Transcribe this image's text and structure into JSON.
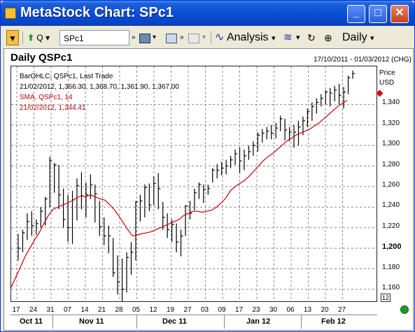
{
  "window": {
    "title": "MetaStock Chart: SPc1",
    "min_label": "_",
    "max_label": "□",
    "close_label": "✕"
  },
  "toolbar": {
    "quote_label": "Q",
    "symbol_value": "SPc1",
    "analysis_label": "Analysis",
    "period_label": "Daily",
    "chevron": "»",
    "dropdown": "▾"
  },
  "chart": {
    "title": "Daily QSPc1",
    "date_range": "17/10/2011 - 01/03/2012 (CHG)",
    "axis_head_1": "Price",
    "axis_head_2": "USD",
    "zoom_value": "12",
    "legend": {
      "line1": "BarOHLC, QSPc1, Last Trade",
      "line2": "21/02/2012, 1,366.30, 1,368.70, 1,361.90, 1,367.00",
      "line3": "SMA, QSPc1, 14",
      "line4": "21/02/2012, 1,344.41"
    },
    "colors": {
      "bars": "#000000",
      "sma": "#cc0000",
      "grid": "#888888"
    }
  },
  "chart_data": {
    "type": "line",
    "title": "Daily QSPc1",
    "ylabel": "Price USD",
    "ylim": [
      1147,
      1377
    ],
    "y_ticks": [
      "1,340",
      "1,320",
      "1,300",
      "1,280",
      "1,260",
      "1,240",
      "1,220",
      "1,200",
      "1,180",
      "1,160"
    ],
    "x_ticks": [
      "17",
      "24",
      "31",
      "07",
      "14",
      "21",
      "28",
      "05",
      "12",
      "19",
      "27",
      "03",
      "09",
      "17",
      "23",
      "30",
      "06",
      "13",
      "20",
      "27"
    ],
    "months": [
      "Oct 11",
      "Nov 11",
      "Dec 11",
      "Jan 12",
      "Feb 12"
    ],
    "grid": true,
    "series": [
      {
        "name": "BarOHLC, QSPc1, Last Trade",
        "bars": [
          {
            "h": 1214,
            "l": 1188,
            "c": 1200
          },
          {
            "h": 1218,
            "l": 1196,
            "c": 1215
          },
          {
            "h": 1234,
            "l": 1208,
            "c": 1226
          },
          {
            "h": 1236,
            "l": 1212,
            "c": 1222
          },
          {
            "h": 1228,
            "l": 1213,
            "c": 1224
          },
          {
            "h": 1240,
            "l": 1220,
            "c": 1236
          },
          {
            "h": 1250,
            "l": 1222,
            "c": 1248
          },
          {
            "h": 1289,
            "l": 1240,
            "c": 1285
          },
          {
            "h": 1283,
            "l": 1254,
            "c": 1281
          },
          {
            "h": 1281,
            "l": 1238,
            "c": 1252
          },
          {
            "h": 1258,
            "l": 1220,
            "c": 1228
          },
          {
            "h": 1252,
            "l": 1206,
            "c": 1220
          },
          {
            "h": 1256,
            "l": 1204,
            "c": 1247
          },
          {
            "h": 1268,
            "l": 1227,
            "c": 1261
          },
          {
            "h": 1274,
            "l": 1238,
            "c": 1251
          },
          {
            "h": 1264,
            "l": 1230,
            "c": 1252
          },
          {
            "h": 1272,
            "l": 1248,
            "c": 1262
          },
          {
            "h": 1262,
            "l": 1225,
            "c": 1253
          },
          {
            "h": 1246,
            "l": 1212,
            "c": 1221
          },
          {
            "h": 1230,
            "l": 1203,
            "c": 1212
          },
          {
            "h": 1222,
            "l": 1195,
            "c": 1212
          },
          {
            "h": 1210,
            "l": 1172,
            "c": 1176
          },
          {
            "h": 1193,
            "l": 1155,
            "c": 1167
          },
          {
            "h": 1190,
            "l": 1148,
            "c": 1160
          },
          {
            "h": 1196,
            "l": 1157,
            "c": 1191
          },
          {
            "h": 1206,
            "l": 1174,
            "c": 1196
          },
          {
            "h": 1246,
            "l": 1188,
            "c": 1245
          },
          {
            "h": 1252,
            "l": 1226,
            "c": 1246
          },
          {
            "h": 1262,
            "l": 1230,
            "c": 1259
          },
          {
            "h": 1263,
            "l": 1236,
            "c": 1242
          },
          {
            "h": 1270,
            "l": 1242,
            "c": 1263
          },
          {
            "h": 1273,
            "l": 1238,
            "c": 1258
          },
          {
            "h": 1245,
            "l": 1218,
            "c": 1230
          },
          {
            "h": 1234,
            "l": 1210,
            "c": 1218
          },
          {
            "h": 1228,
            "l": 1206,
            "c": 1223
          },
          {
            "h": 1224,
            "l": 1196,
            "c": 1206
          },
          {
            "h": 1218,
            "l": 1192,
            "c": 1212
          },
          {
            "h": 1242,
            "l": 1212,
            "c": 1241
          },
          {
            "h": 1246,
            "l": 1228,
            "c": 1234
          },
          {
            "h": 1258,
            "l": 1237,
            "c": 1254
          },
          {
            "h": 1264,
            "l": 1248,
            "c": 1262
          },
          {
            "h": 1262,
            "l": 1244,
            "c": 1257
          },
          {
            "h": 1262,
            "l": 1252,
            "c": 1258
          },
          {
            "h": 1278,
            "l": 1264,
            "c": 1276
          },
          {
            "h": 1282,
            "l": 1268,
            "c": 1276
          },
          {
            "h": 1284,
            "l": 1271,
            "c": 1278
          },
          {
            "h": 1286,
            "l": 1272,
            "c": 1280
          },
          {
            "h": 1290,
            "l": 1278,
            "c": 1286
          },
          {
            "h": 1296,
            "l": 1281,
            "c": 1292
          },
          {
            "h": 1298,
            "l": 1273,
            "c": 1285
          },
          {
            "h": 1296,
            "l": 1276,
            "c": 1290
          },
          {
            "h": 1300,
            "l": 1286,
            "c": 1294
          },
          {
            "h": 1304,
            "l": 1290,
            "c": 1300
          },
          {
            "h": 1313,
            "l": 1294,
            "c": 1310
          },
          {
            "h": 1316,
            "l": 1303,
            "c": 1312
          },
          {
            "h": 1318,
            "l": 1306,
            "c": 1314
          },
          {
            "h": 1320,
            "l": 1306,
            "c": 1312
          },
          {
            "h": 1322,
            "l": 1307,
            "c": 1317
          },
          {
            "h": 1329,
            "l": 1314,
            "c": 1326
          },
          {
            "h": 1326,
            "l": 1305,
            "c": 1315
          },
          {
            "h": 1318,
            "l": 1304,
            "c": 1313
          },
          {
            "h": 1320,
            "l": 1298,
            "c": 1313
          },
          {
            "h": 1324,
            "l": 1300,
            "c": 1318
          },
          {
            "h": 1328,
            "l": 1310,
            "c": 1324
          },
          {
            "h": 1336,
            "l": 1318,
            "c": 1333
          },
          {
            "h": 1342,
            "l": 1324,
            "c": 1338
          },
          {
            "h": 1346,
            "l": 1331,
            "c": 1342
          },
          {
            "h": 1350,
            "l": 1338,
            "c": 1346
          },
          {
            "h": 1354,
            "l": 1340,
            "c": 1352
          },
          {
            "h": 1356,
            "l": 1338,
            "c": 1351
          },
          {
            "h": 1358,
            "l": 1343,
            "c": 1354
          },
          {
            "h": 1360,
            "l": 1340,
            "c": 1349
          },
          {
            "h": 1357,
            "l": 1336,
            "c": 1352
          },
          {
            "h": 1368,
            "l": 1350,
            "c": 1366
          },
          {
            "h": 1373,
            "l": 1365,
            "c": 1370
          }
        ]
      },
      {
        "name": "SMA, QSPc1, 14",
        "values": [
          1162,
          1172,
          1182,
          1192,
          1200,
          1208,
          1215,
          1224,
          1232,
          1238,
          1240,
          1242,
          1244,
          1246,
          1249,
          1251,
          1250,
          1252,
          1250,
          1248,
          1247,
          1243,
          1238,
          1232,
          1225,
          1218,
          1212,
          1213,
          1214,
          1215,
          1216,
          1218,
          1220,
          1222,
          1224,
          1226,
          1228,
          1232,
          1234,
          1236,
          1236,
          1235,
          1236,
          1237,
          1240,
          1244,
          1249,
          1256,
          1260,
          1263,
          1266,
          1270,
          1275,
          1280,
          1285,
          1289,
          1292,
          1296,
          1300,
          1304,
          1307,
          1310,
          1312,
          1314,
          1316,
          1319,
          1322,
          1326,
          1330,
          1334,
          1338,
          1341,
          1344
        ]
      }
    ]
  }
}
